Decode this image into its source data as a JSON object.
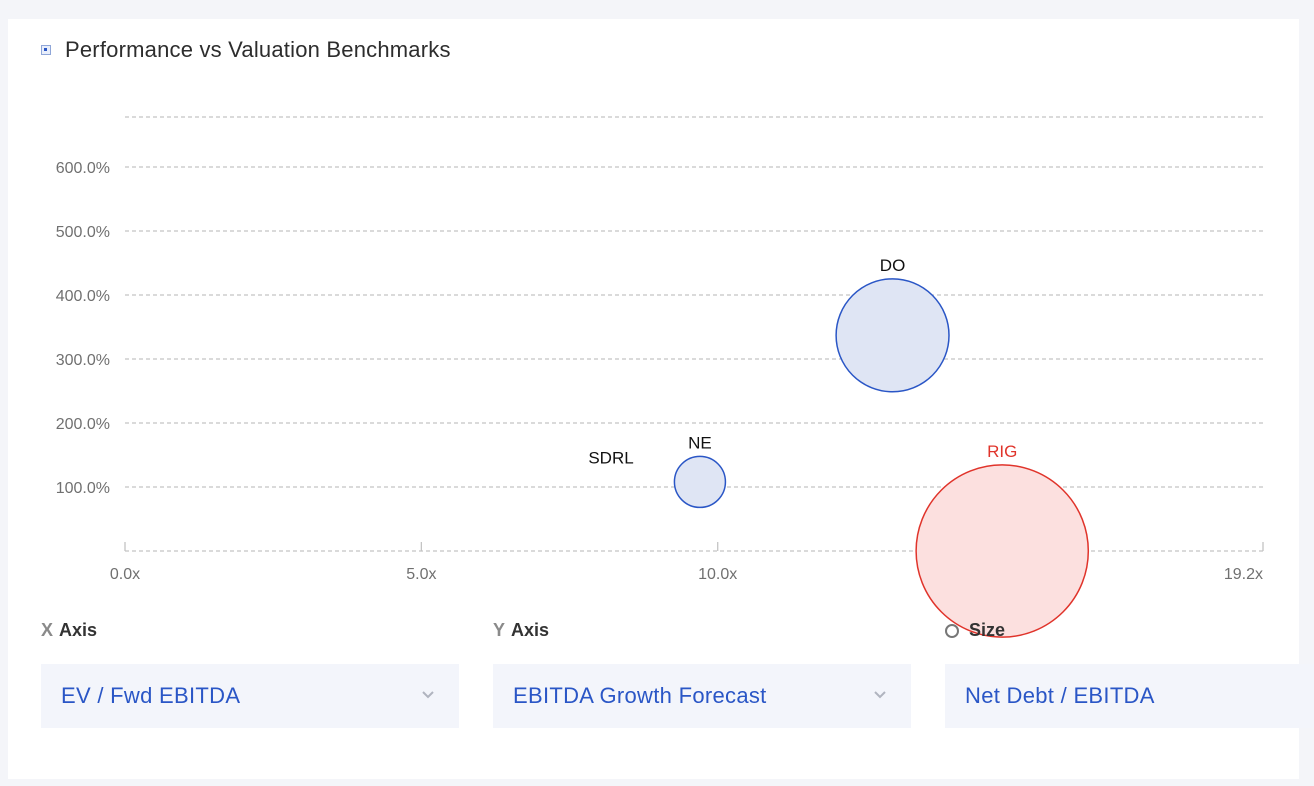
{
  "header": {
    "title": "Performance vs Valuation Benchmarks",
    "icon": "legend-square-icon"
  },
  "chart_data": {
    "type": "scatter",
    "title": "Performance vs Valuation Benchmarks",
    "xlabel": "EV / Fwd EBITDA",
    "ylabel": "EBITDA Growth Forecast",
    "size_label": "Net Debt / EBITDA",
    "xlim": [
      0,
      19.2
    ],
    "ylim": [
      0,
      680
    ],
    "x_ticks": [
      {
        "value": 0,
        "label": "0.0x"
      },
      {
        "value": 5,
        "label": "5.0x"
      },
      {
        "value": 10,
        "label": "10.0x"
      },
      {
        "value": 19.2,
        "label": "19.2x"
      }
    ],
    "y_ticks": [
      {
        "value": 100,
        "label": "100.0%"
      },
      {
        "value": 200,
        "label": "200.0%"
      },
      {
        "value": 300,
        "label": "300.0%"
      },
      {
        "value": 400,
        "label": "400.0%"
      },
      {
        "value": 500,
        "label": "500.0%"
      },
      {
        "value": 600,
        "label": "600.0%"
      }
    ],
    "grid": true,
    "points": [
      {
        "label": "SDRL",
        "x": 8.2,
        "y": 110,
        "size": 0,
        "highlight": false
      },
      {
        "label": "NE",
        "x": 9.7,
        "y": 108,
        "size": 1.0,
        "highlight": false
      },
      {
        "label": "DO",
        "x": 12.95,
        "y": 337,
        "size": 4.9,
        "highlight": false
      },
      {
        "label": "RIG",
        "x": 14.8,
        "y": 0,
        "size": 11.4,
        "highlight": true
      }
    ]
  },
  "colors": {
    "point_fill": "#dfe5f4",
    "point_stroke": "#2a56c6",
    "highlight_fill": "#fce0df",
    "highlight_stroke": "#e0342b",
    "highlight_text": "#e0342b",
    "grid": "#c4c4c4",
    "axis_text": "#707070"
  },
  "controls": {
    "x_axis": {
      "prefix": "X",
      "label": "Axis",
      "value": "EV / Fwd EBITDA"
    },
    "y_axis": {
      "prefix": "Y",
      "label": "Axis",
      "value": "EBITDA Growth Forecast"
    },
    "size": {
      "label": "Size",
      "value": "Net Debt / EBITDA"
    }
  }
}
